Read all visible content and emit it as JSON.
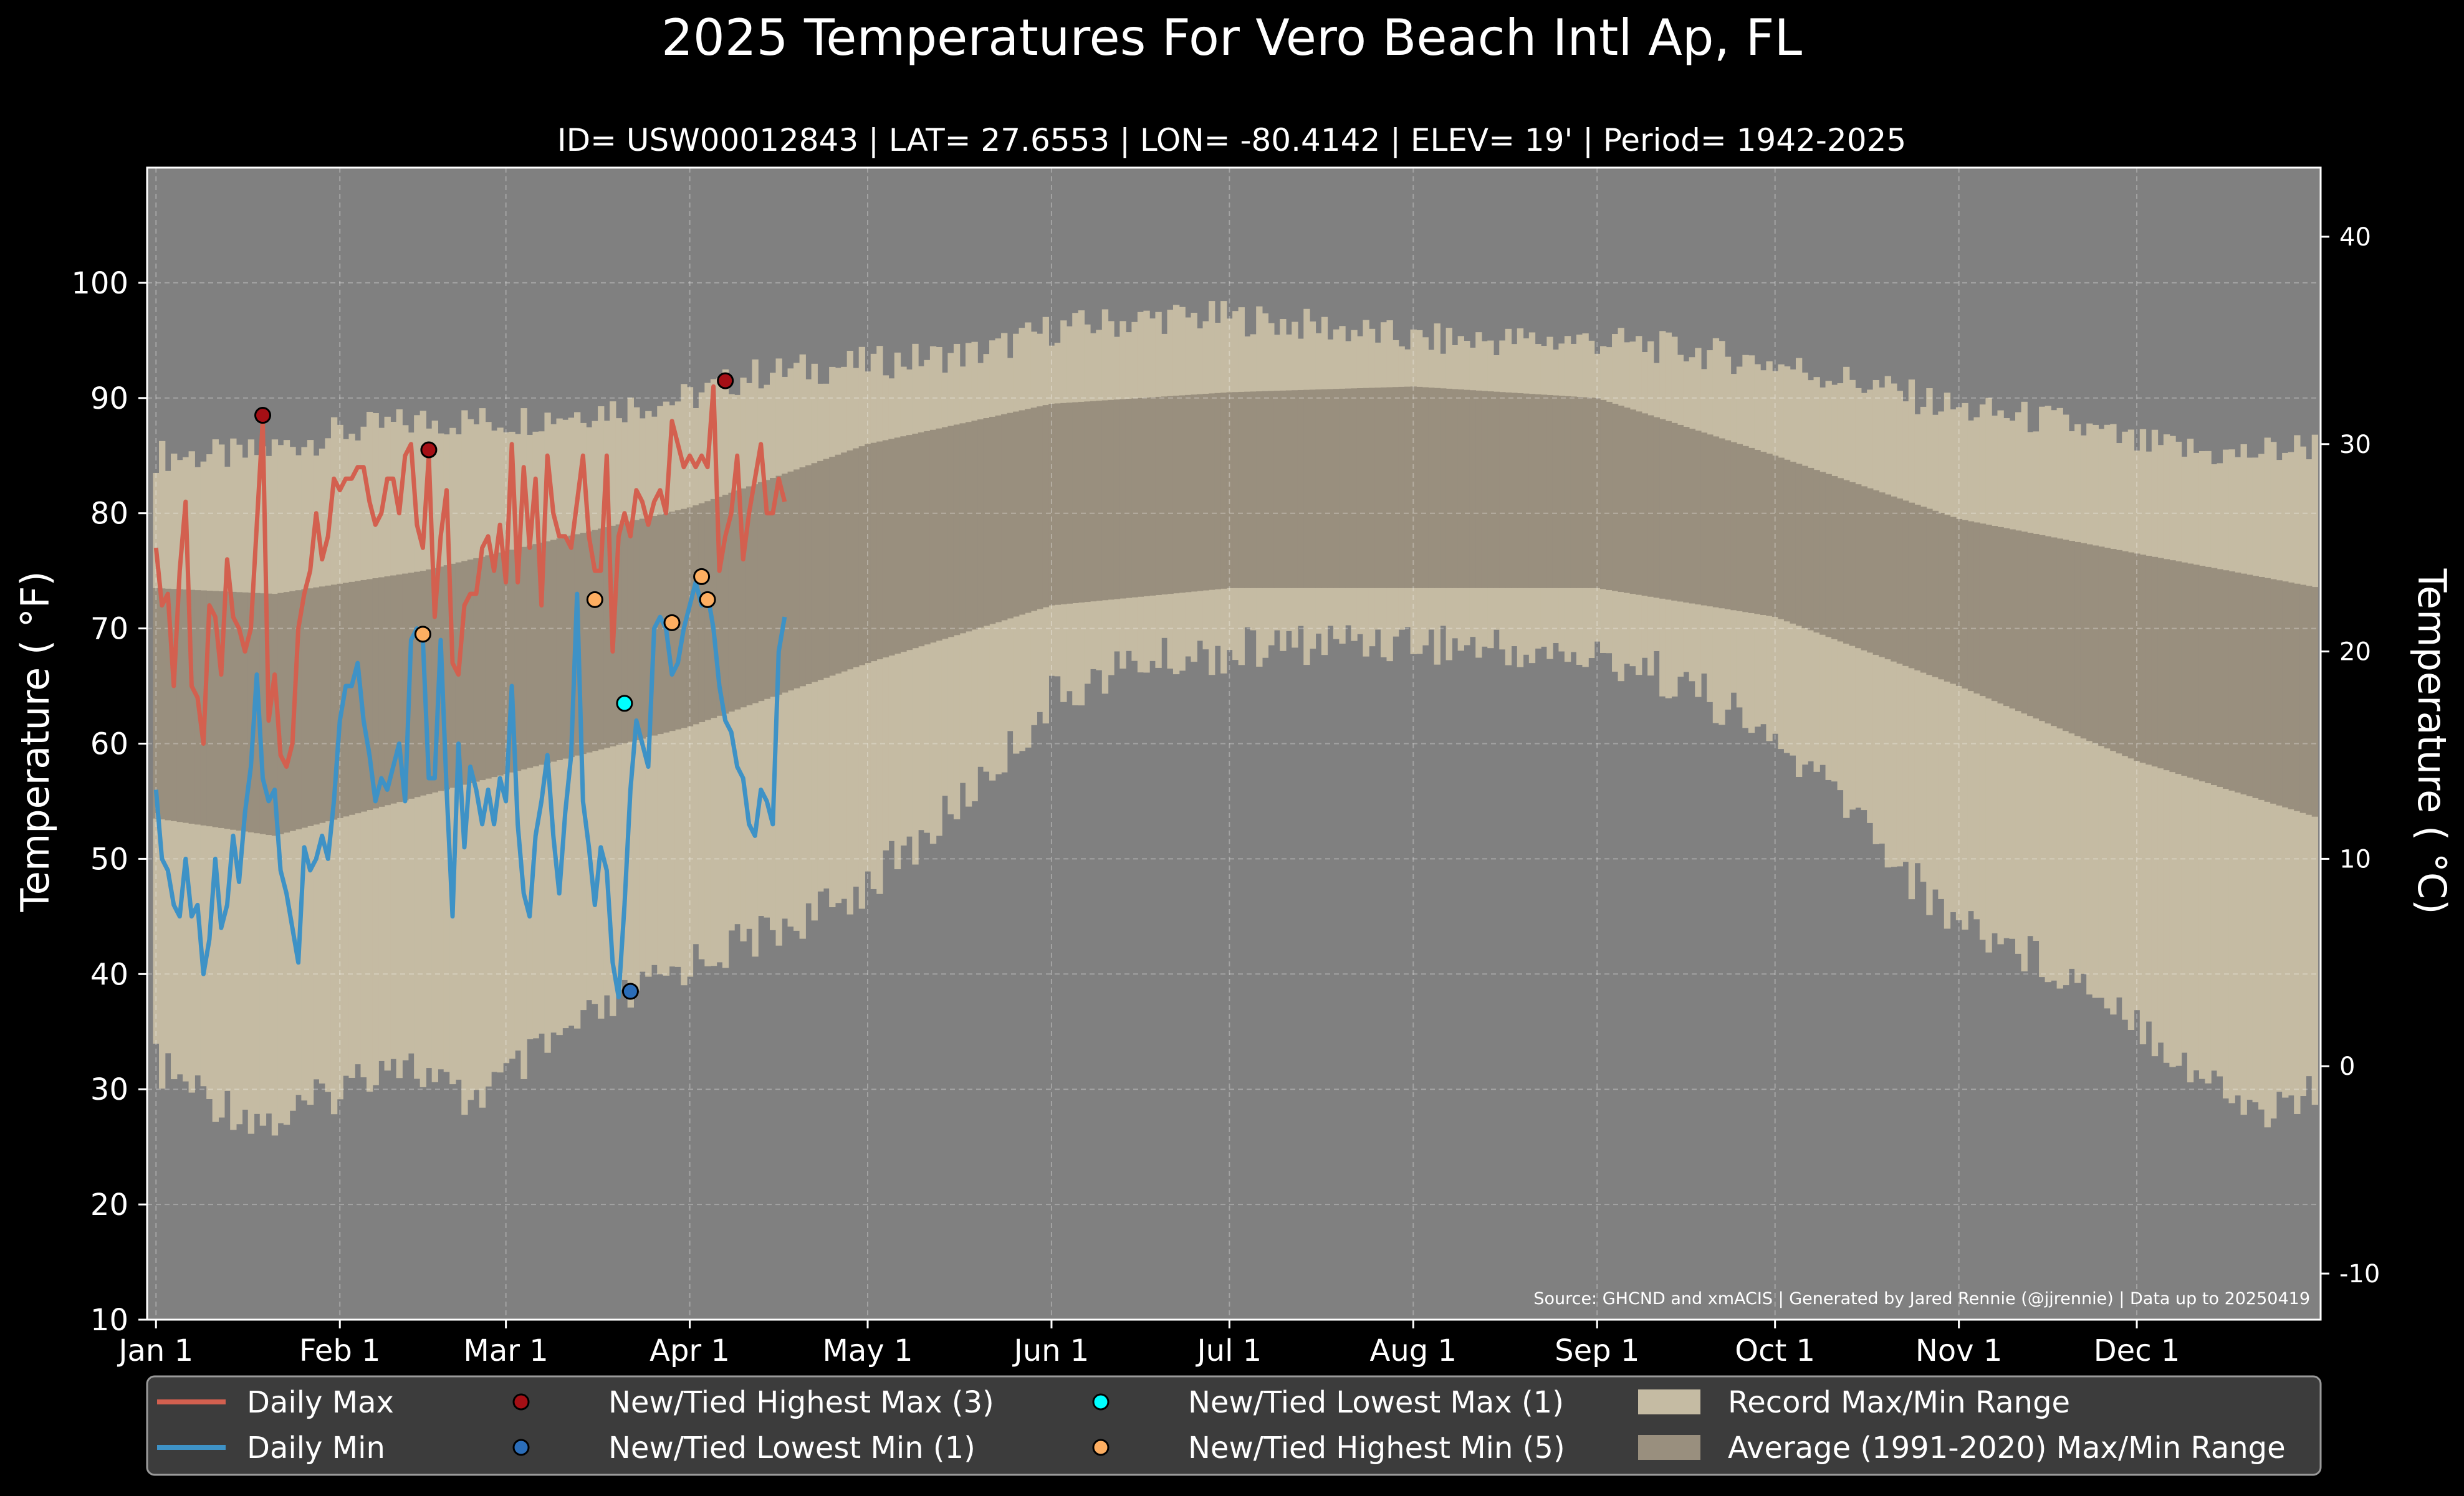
{
  "chart_data": {
    "type": "line",
    "title": "2025 Temperatures For Vero Beach Intl Ap, FL",
    "subtitle": "ID= USW00012843 | LAT= 27.6553 | LON= -80.4142 | ELEV= 19' | Period= 1942-2025",
    "ylabel": "Temperature ( °F)",
    "ylabel_right": "Temperature ( °C)",
    "source": "Source: GHCND and xmACIS | Generated by Jared Rennie (@jjrennie) | Data up to 20250419",
    "ylim": [
      10,
      110
    ],
    "xlim_day": [
      -1.5,
      365
    ],
    "y_ticks": [
      10,
      20,
      30,
      40,
      50,
      60,
      70,
      80,
      90,
      100
    ],
    "y_ticks_c": [
      -10,
      0,
      10,
      20,
      30,
      40
    ],
    "x_ticks": [
      {
        "day": 0,
        "label": "Jan 1"
      },
      {
        "day": 31,
        "label": "Feb 1"
      },
      {
        "day": 59,
        "label": "Mar 1"
      },
      {
        "day": 90,
        "label": "Apr 1"
      },
      {
        "day": 120,
        "label": "May 1"
      },
      {
        "day": 151,
        "label": "Jun 1"
      },
      {
        "day": 181,
        "label": "Jul 1"
      },
      {
        "day": 212,
        "label": "Aug 1"
      },
      {
        "day": 243,
        "label": "Sep 1"
      },
      {
        "day": 273,
        "label": "Oct 1"
      },
      {
        "day": 304,
        "label": "Nov 1"
      },
      {
        "day": 334,
        "label": "Dec 1"
      }
    ],
    "grid": true,
    "legend_position": "bottom",
    "colors": {
      "figure_bg": "#000000",
      "plot_bg": "#808080",
      "record_range": "#c5bba3",
      "normal_range": "#998f7e",
      "daily_max": "#d3604f",
      "daily_min": "#3e92c6",
      "new_high_max": "#a50f15",
      "new_low_min": "#2b6db8",
      "new_low_max": "#00ffff",
      "new_high_min": "#fdae61"
    },
    "series": [
      {
        "name": "Daily Max",
        "x_day": [
          0,
          1,
          2,
          3,
          4,
          5,
          6,
          7,
          8,
          9,
          10,
          11,
          12,
          13,
          14,
          15,
          16,
          17,
          18,
          19,
          20,
          21,
          22,
          23,
          24,
          25,
          26,
          27,
          28,
          29,
          30,
          31,
          32,
          33,
          34,
          35,
          36,
          37,
          38,
          39,
          40,
          41,
          42,
          43,
          44,
          45,
          46,
          47,
          48,
          49,
          50,
          51,
          52,
          53,
          54,
          55,
          56,
          57,
          58,
          59,
          60,
          61,
          62,
          63,
          64,
          65,
          66,
          67,
          68,
          69,
          70,
          71,
          72,
          73,
          74,
          75,
          76,
          77,
          78,
          79,
          80,
          81,
          82,
          83,
          84,
          85,
          86,
          87,
          88,
          89,
          90,
          91,
          92,
          93,
          94,
          95,
          96,
          97,
          98,
          99,
          100,
          101,
          102,
          103,
          104,
          105,
          106,
          107,
          108
        ],
        "values": [
          77,
          72,
          73,
          65,
          75,
          81,
          65,
          64,
          60,
          72,
          71,
          66,
          76,
          71,
          70,
          68,
          70,
          79,
          88,
          62,
          66,
          59,
          58,
          60,
          70,
          73,
          75,
          80,
          76,
          78,
          83,
          82,
          83,
          83,
          84,
          84,
          81,
          79,
          80,
          83,
          83,
          80,
          85,
          86,
          79,
          77,
          85,
          71,
          78,
          82,
          67,
          66,
          72,
          73,
          73,
          77,
          78,
          75,
          79,
          74,
          86,
          74,
          84,
          77,
          83,
          72,
          85,
          80,
          78,
          78,
          77,
          81,
          85,
          78,
          75,
          75,
          85,
          68,
          78,
          80,
          78,
          82,
          81,
          79,
          81,
          82,
          80,
          88,
          86,
          84,
          85,
          84,
          85,
          84,
          91,
          75,
          78,
          80,
          85,
          76,
          80,
          83,
          86,
          80,
          80,
          83,
          81,
          null,
          null
        ]
      },
      {
        "name": "Daily Min",
        "x_day": [
          0,
          1,
          2,
          3,
          4,
          5,
          6,
          7,
          8,
          9,
          10,
          11,
          12,
          13,
          14,
          15,
          16,
          17,
          18,
          19,
          20,
          21,
          22,
          23,
          24,
          25,
          26,
          27,
          28,
          29,
          30,
          31,
          32,
          33,
          34,
          35,
          36,
          37,
          38,
          39,
          40,
          41,
          42,
          43,
          44,
          45,
          46,
          47,
          48,
          49,
          50,
          51,
          52,
          53,
          54,
          55,
          56,
          57,
          58,
          59,
          60,
          61,
          62,
          63,
          64,
          65,
          66,
          67,
          68,
          69,
          70,
          71,
          72,
          73,
          74,
          75,
          76,
          77,
          78,
          79,
          80,
          81,
          82,
          83,
          84,
          85,
          86,
          87,
          88,
          89,
          90,
          91,
          92,
          93,
          94,
          95,
          96,
          97,
          98,
          99,
          100,
          101,
          102,
          103,
          104,
          105,
          106,
          107,
          108
        ],
        "values": [
          56,
          50,
          49,
          46,
          45,
          50,
          45,
          46,
          40,
          43,
          50,
          44,
          46,
          52,
          48,
          54,
          58,
          66,
          57,
          55,
          56,
          49,
          47,
          44,
          41,
          51,
          49,
          50,
          52,
          50,
          55,
          62,
          65,
          65,
          67,
          62,
          59,
          55,
          57,
          56,
          58,
          60,
          55,
          69,
          70,
          69,
          57,
          57,
          69,
          56,
          45,
          60,
          51,
          58,
          56,
          53,
          56,
          53,
          57,
          55,
          65,
          53,
          47,
          45,
          52,
          55,
          59,
          52,
          47,
          54,
          59,
          73,
          55,
          51,
          46,
          51,
          49,
          41,
          38,
          46,
          56,
          62,
          60,
          58,
          70,
          71,
          70,
          66,
          67,
          70,
          72,
          74,
          72,
          73,
          70,
          65,
          62,
          61,
          58,
          57,
          53,
          52,
          56,
          55,
          53,
          68,
          71,
          null,
          null
        ]
      }
    ],
    "records": [
      {
        "name": "New/Tied Highest Max (3)",
        "points": [
          {
            "day": 18,
            "value": 88.5
          },
          {
            "day": 46,
            "value": 85.5
          },
          {
            "day": 96,
            "value": 91.5
          }
        ]
      },
      {
        "name": "New/Tied Lowest Min (1)",
        "points": [
          {
            "day": 80,
            "value": 38.5
          }
        ]
      },
      {
        "name": "New/Tied Lowest Max (1)",
        "points": [
          {
            "day": 79,
            "value": 63.5
          }
        ]
      },
      {
        "name": "New/Tied Highest Min (5)",
        "points": [
          {
            "day": 45,
            "value": 69.5
          },
          {
            "day": 74,
            "value": 72.5
          },
          {
            "day": 87,
            "value": 70.5
          },
          {
            "day": 92,
            "value": 74.5
          },
          {
            "day": 93,
            "value": 72.5
          }
        ]
      }
    ],
    "normal_range": {
      "name": "Average (1991-2020) Max/Min Range",
      "max_day": [
        0,
        20,
        45,
        90,
        120,
        151,
        181,
        212,
        243,
        273,
        304,
        334,
        365
      ],
      "max_values": [
        73.5,
        73,
        75,
        80.5,
        86,
        89.5,
        90.5,
        91,
        90,
        85,
        79.5,
        76.5,
        73.5
      ],
      "min_day": [
        0,
        20,
        45,
        90,
        120,
        151,
        181,
        212,
        243,
        273,
        304,
        334,
        365
      ],
      "min_values": [
        53.5,
        52,
        55.5,
        61.5,
        67,
        72,
        73.5,
        73.5,
        73.5,
        71,
        65,
        58.5,
        53.5
      ]
    },
    "record_range": {
      "name": "Record Max/Min Range",
      "max_day": [
        0,
        15,
        31,
        45,
        59,
        75,
        90,
        100,
        120,
        140,
        151,
        170,
        181,
        200,
        212,
        230,
        243,
        260,
        273,
        290,
        304,
        320,
        334,
        350,
        365
      ],
      "max_values": [
        85,
        85,
        87,
        88,
        88,
        89,
        90,
        92,
        93,
        94,
        96,
        97,
        97,
        96,
        95,
        95,
        95,
        94,
        93,
        91,
        89,
        88,
        86,
        85,
        86
      ],
      "min_day": [
        0,
        10,
        20,
        31,
        40,
        52,
        59,
        70,
        80,
        90,
        100,
        115,
        130,
        145,
        151,
        165,
        181,
        200,
        212,
        230,
        250,
        262,
        273,
        285,
        300,
        315,
        330,
        345,
        355,
        365
      ],
      "min_values": [
        32,
        29,
        27,
        30,
        33,
        29,
        31,
        35,
        38,
        41,
        43,
        46,
        52,
        60,
        64,
        67,
        68,
        69,
        69,
        68,
        67,
        64,
        60,
        55,
        46,
        42,
        38,
        31,
        28,
        30
      ]
    }
  },
  "legend": [
    {
      "label": "Daily Max",
      "kind": "line",
      "color": "#d3604f"
    },
    {
      "label": "Daily Min",
      "kind": "line",
      "color": "#3e92c6"
    },
    {
      "label": "New/Tied Highest Max (3)",
      "kind": "dot",
      "color": "#a50f15"
    },
    {
      "label": "New/Tied Lowest Min (1)",
      "kind": "dot",
      "color": "#2b6db8"
    },
    {
      "label": "New/Tied Lowest Max (1)",
      "kind": "dot",
      "color": "#00ffff"
    },
    {
      "label": "New/Tied Highest Min (5)",
      "kind": "dot",
      "color": "#fdae61"
    },
    {
      "label": "Record Max/Min Range",
      "kind": "patch",
      "color": "#c5bba3"
    },
    {
      "label": "Average (1991-2020) Max/Min Range",
      "kind": "patch",
      "color": "#998f7e"
    }
  ]
}
